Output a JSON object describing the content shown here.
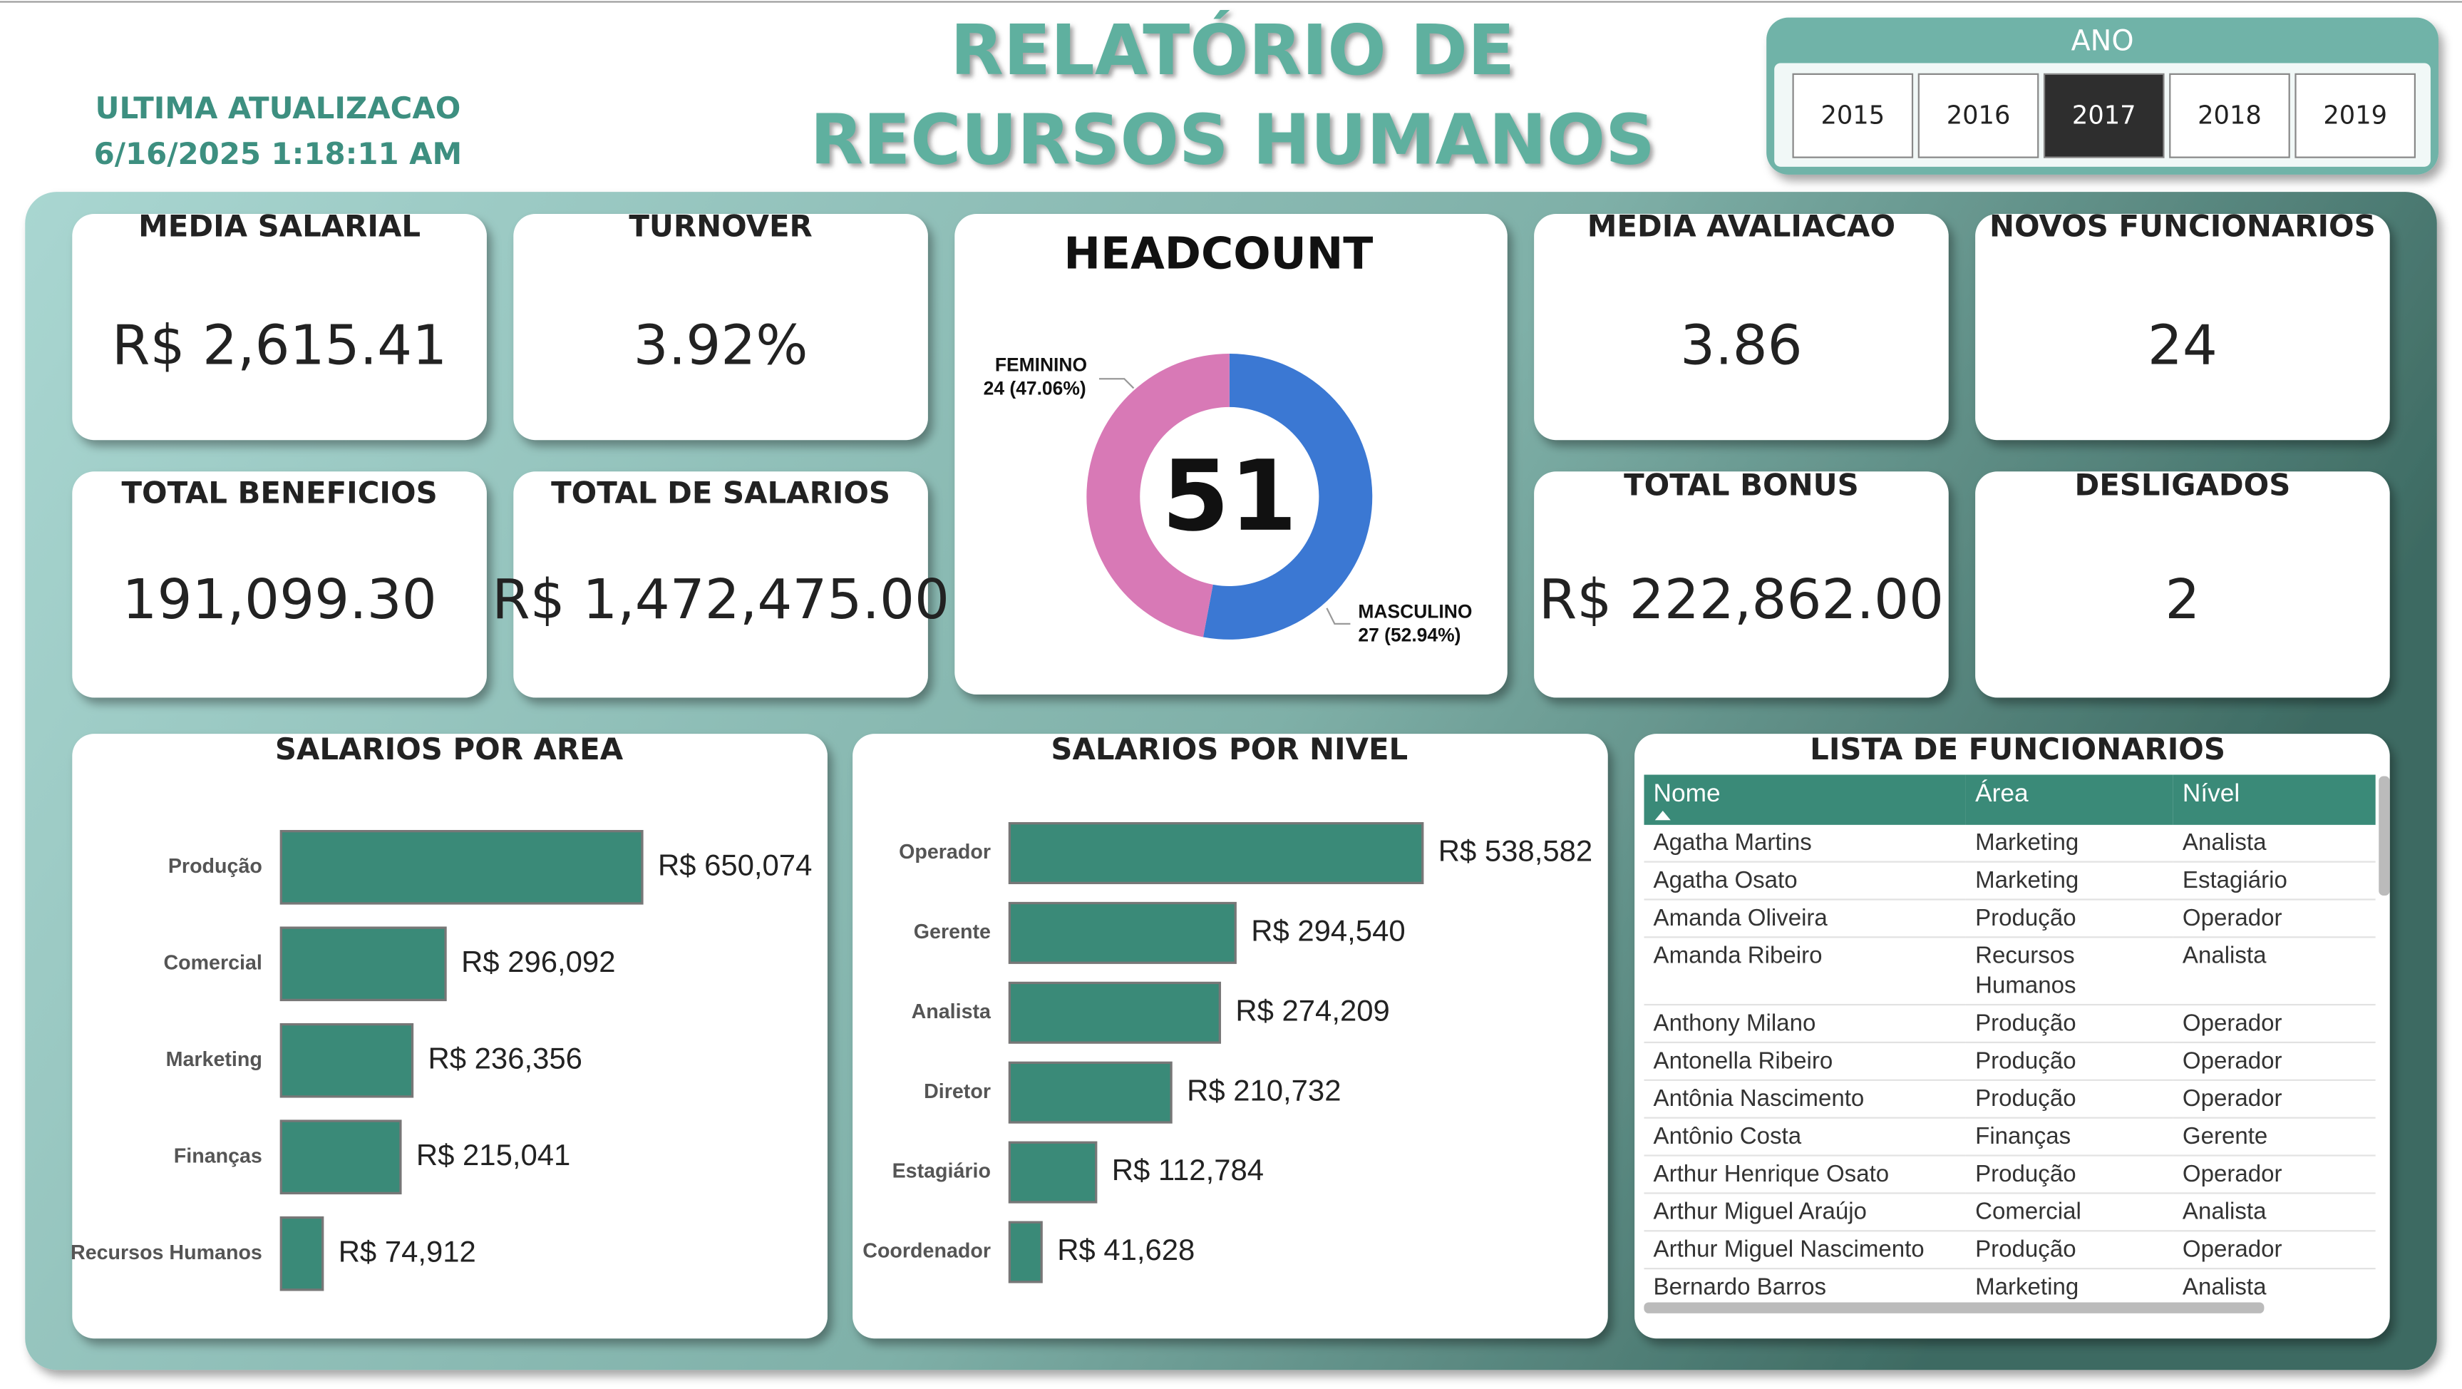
{
  "header": {
    "update_label": "ULTIMA ATUALIZACAO",
    "update_time": "6/16/2025 1:18:11 AM",
    "title_lines": [
      "RELATÓRIO DE",
      "RECURSOS HUMANOS"
    ]
  },
  "slicer": {
    "label": "ANO",
    "items": [
      {
        "label": "2015",
        "selected": false
      },
      {
        "label": "2016",
        "selected": false
      },
      {
        "label": "2017",
        "selected": true
      },
      {
        "label": "2018",
        "selected": false
      },
      {
        "label": "2019",
        "selected": false
      }
    ]
  },
  "cards": [
    {
      "title": "MEDIA SALARIAL",
      "value": "R$ 2,615.41"
    },
    {
      "title": "TURNOVER",
      "value": "3.92%"
    },
    {
      "title": "TOTAL BENEFICIOS",
      "value": "191,099.30"
    },
    {
      "title": "TOTAL DE SALARIOS",
      "value": "R$ 1,472,475.00"
    },
    {
      "title": "MEDIA AVALIACAO",
      "value": "3.86"
    },
    {
      "title": "NOVOS FUNCIONARIOS",
      "value": "24"
    },
    {
      "title": "TOTAL BONUS",
      "value": "R$ 222,862.00"
    },
    {
      "title": "DESLIGADOS",
      "value": "2"
    }
  ],
  "chart_data": [
    {
      "type": "donut",
      "title": "HEADCOUNT",
      "total": 51,
      "categories": [
        "FEMININO",
        "MASCULINO"
      ],
      "values": [
        24,
        27
      ],
      "value_labels": [
        "24 (47.06%)",
        "27 (52.94%)"
      ],
      "colors": [
        "#d879b6",
        "#3b78d3"
      ]
    },
    {
      "type": "hbar",
      "title": "SALARIOS POR AREA",
      "categories": [
        "Produção",
        "Comercial",
        "Marketing",
        "Finanças",
        "Recursos Humanos"
      ],
      "values": [
        650074,
        296092,
        236356,
        215041,
        74912
      ],
      "value_labels": [
        "R$ 650,074",
        "R$ 296,092",
        "R$ 236,356",
        "R$ 215,041",
        "R$ 74,912"
      ],
      "color": "#3a8a78"
    },
    {
      "type": "hbar",
      "title": "SALARIOS POR NIVEL",
      "categories": [
        "Operador",
        "Gerente",
        "Analista",
        "Diretor",
        "Estagiário",
        "Coordenador"
      ],
      "values": [
        538582,
        294540,
        274209,
        210732,
        112784,
        41628
      ],
      "value_labels": [
        "R$ 538,582",
        "R$ 294,540",
        "R$ 274,209",
        "R$ 210,732",
        "R$ 112,784",
        "R$ 41,628"
      ],
      "color": "#3a8a78"
    }
  ],
  "table": {
    "title": "LISTA DE FUNCIONARIOS",
    "columns": [
      "Nome",
      "Área",
      "Nível"
    ],
    "rows": [
      [
        "Agatha Martins",
        "Marketing",
        "Analista"
      ],
      [
        "Agatha Osato",
        "Marketing",
        "Estagiário"
      ],
      [
        "Amanda Oliveira",
        "Produção",
        "Operador"
      ],
      [
        "Amanda Ribeiro",
        "Recursos Humanos",
        "Analista"
      ],
      [
        "Anthony Milano",
        "Produção",
        "Operador"
      ],
      [
        "Antonella Ribeiro",
        "Produção",
        "Operador"
      ],
      [
        "Antônia Nascimento",
        "Produção",
        "Operador"
      ],
      [
        "Antônio Costa",
        "Finanças",
        "Gerente"
      ],
      [
        "Arthur Henrique Osato",
        "Produção",
        "Operador"
      ],
      [
        "Arthur Miguel Araújo",
        "Comercial",
        "Analista"
      ],
      [
        "Arthur Miguel Nascimento",
        "Produção",
        "Operador"
      ],
      [
        "Bernardo Barros",
        "Marketing",
        "Analista"
      ]
    ]
  }
}
